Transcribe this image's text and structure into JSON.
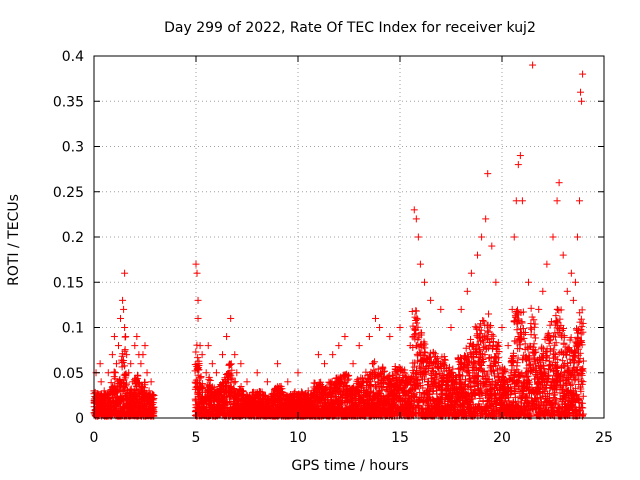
{
  "chart_data": {
    "type": "scatter",
    "title": "Day 299 of 2022, Rate Of TEC Index for receiver kuj2",
    "xlabel": "GPS time / hours",
    "ylabel": "ROTI / TECUs",
    "xlim": [
      0,
      25
    ],
    "ylim": [
      0,
      0.4
    ],
    "xticks": [
      0,
      5,
      10,
      15,
      20,
      25
    ],
    "xtick_labels": [
      "0",
      "5",
      "10",
      "15",
      "20",
      "25"
    ],
    "yticks": [
      0,
      0.05,
      0.1,
      0.15,
      0.2,
      0.25,
      0.3,
      0.35,
      0.4
    ],
    "ytick_labels": [
      "0",
      "0.05",
      "0.1",
      "0.15",
      "0.2",
      "0.25",
      "0.3",
      "0.35",
      "0.4"
    ],
    "grid": true,
    "marker": "+",
    "color": "#ff0000",
    "data_gap_hours": [
      2.95,
      4.95
    ],
    "series": [
      {
        "name": "ROTI",
        "x": [
          0.0,
          0.1,
          0.2,
          0.3,
          0.35,
          0.5,
          0.7,
          0.9,
          1.0,
          1.1,
          1.2,
          1.3,
          1.4,
          1.45,
          1.5,
          1.5,
          1.55,
          1.6,
          1.7,
          1.8,
          1.9,
          2.0,
          2.1,
          2.2,
          2.3,
          2.4,
          2.5,
          2.6,
          2.7,
          2.8,
          2.9,
          5.0,
          5.05,
          5.1,
          5.1,
          5.2,
          5.3,
          5.5,
          5.6,
          5.8,
          6.0,
          6.3,
          6.5,
          6.7,
          6.9,
          7.0,
          7.2,
          7.5,
          8.0,
          8.5,
          9.0,
          9.5,
          10.0,
          10.5,
          11.0,
          11.3,
          11.7,
          12.0,
          12.3,
          12.7,
          13.0,
          13.5,
          13.8,
          14.0,
          14.5,
          15.0,
          15.5,
          15.7,
          15.8,
          15.9,
          16.0,
          16.2,
          16.5,
          17.0,
          17.5,
          18.0,
          18.3,
          18.5,
          18.8,
          19.0,
          19.2,
          19.3,
          19.5,
          19.7,
          20.0,
          20.3,
          20.5,
          20.6,
          20.7,
          20.8,
          20.9,
          21.0,
          21.3,
          21.5,
          21.8,
          22.0,
          22.2,
          22.5,
          22.7,
          22.8,
          23.0,
          23.2,
          23.4,
          23.5,
          23.6,
          23.7,
          23.8,
          23.85,
          23.9,
          23.95
        ],
        "y": [
          0.03,
          0.05,
          0.02,
          0.06,
          0.04,
          0.03,
          0.05,
          0.07,
          0.09,
          0.06,
          0.08,
          0.11,
          0.13,
          0.12,
          0.16,
          0.1,
          0.09,
          0.07,
          0.05,
          0.06,
          0.04,
          0.08,
          0.09,
          0.07,
          0.06,
          0.07,
          0.08,
          0.05,
          0.03,
          0.04,
          0.02,
          0.17,
          0.16,
          0.13,
          0.11,
          0.08,
          0.07,
          0.05,
          0.08,
          0.06,
          0.05,
          0.07,
          0.09,
          0.11,
          0.07,
          0.05,
          0.06,
          0.04,
          0.05,
          0.04,
          0.06,
          0.04,
          0.05,
          0.03,
          0.07,
          0.06,
          0.07,
          0.08,
          0.09,
          0.06,
          0.08,
          0.09,
          0.11,
          0.1,
          0.09,
          0.1,
          0.08,
          0.23,
          0.22,
          0.2,
          0.17,
          0.15,
          0.13,
          0.12,
          0.1,
          0.12,
          0.14,
          0.16,
          0.18,
          0.2,
          0.22,
          0.27,
          0.19,
          0.15,
          0.1,
          0.08,
          0.12,
          0.2,
          0.24,
          0.28,
          0.29,
          0.24,
          0.15,
          0.39,
          0.12,
          0.14,
          0.17,
          0.2,
          0.24,
          0.26,
          0.18,
          0.14,
          0.16,
          0.13,
          0.15,
          0.2,
          0.24,
          0.36,
          0.35,
          0.38
        ]
      }
    ]
  }
}
